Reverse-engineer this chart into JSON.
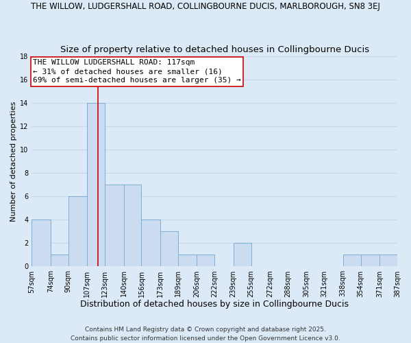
{
  "title": "THE WILLOW, LUDGERSHALL ROAD, COLLINGBOURNE DUCIS, MARLBOROUGH, SN8 3EJ",
  "subtitle": "Size of property relative to detached houses in Collingbourne Ducis",
  "xlabel": "Distribution of detached houses by size in Collingbourne Ducis",
  "ylabel": "Number of detached properties",
  "bin_edges": [
    57,
    74,
    90,
    107,
    123,
    140,
    156,
    173,
    189,
    206,
    222,
    239,
    255,
    272,
    288,
    305,
    321,
    338,
    354,
    371,
    387
  ],
  "bin_labels": [
    "57sqm",
    "74sqm",
    "90sqm",
    "107sqm",
    "123sqm",
    "140sqm",
    "156sqm",
    "173sqm",
    "189sqm",
    "206sqm",
    "222sqm",
    "239sqm",
    "255sqm",
    "272sqm",
    "288sqm",
    "305sqm",
    "321sqm",
    "338sqm",
    "354sqm",
    "371sqm",
    "387sqm"
  ],
  "counts": [
    4,
    1,
    6,
    14,
    7,
    7,
    4,
    3,
    1,
    1,
    0,
    2,
    0,
    0,
    0,
    0,
    0,
    1,
    1,
    1
  ],
  "bar_facecolor": "#ccdcf0",
  "bar_edgecolor": "#7aafd4",
  "grid_color": "#c8d8ec",
  "bg_color": "#dce9f7",
  "vline_x": 117,
  "vline_color": "#cc0000",
  "annotation_text": "THE WILLOW LUDGERSHALL ROAD: 117sqm\n← 31% of detached houses are smaller (16)\n69% of semi-detached houses are larger (35) →",
  "annotation_box_edgecolor": "#cc0000",
  "ylim": [
    0,
    18
  ],
  "yticks": [
    0,
    2,
    4,
    6,
    8,
    10,
    12,
    14,
    16,
    18
  ],
  "footer": "Contains HM Land Registry data © Crown copyright and database right 2025.\nContains public sector information licensed under the Open Government Licence v3.0.",
  "title_fontsize": 8.5,
  "subtitle_fontsize": 9.5,
  "xlabel_fontsize": 9,
  "ylabel_fontsize": 8,
  "tick_fontsize": 7,
  "annotation_fontsize": 8,
  "footer_fontsize": 6.5
}
